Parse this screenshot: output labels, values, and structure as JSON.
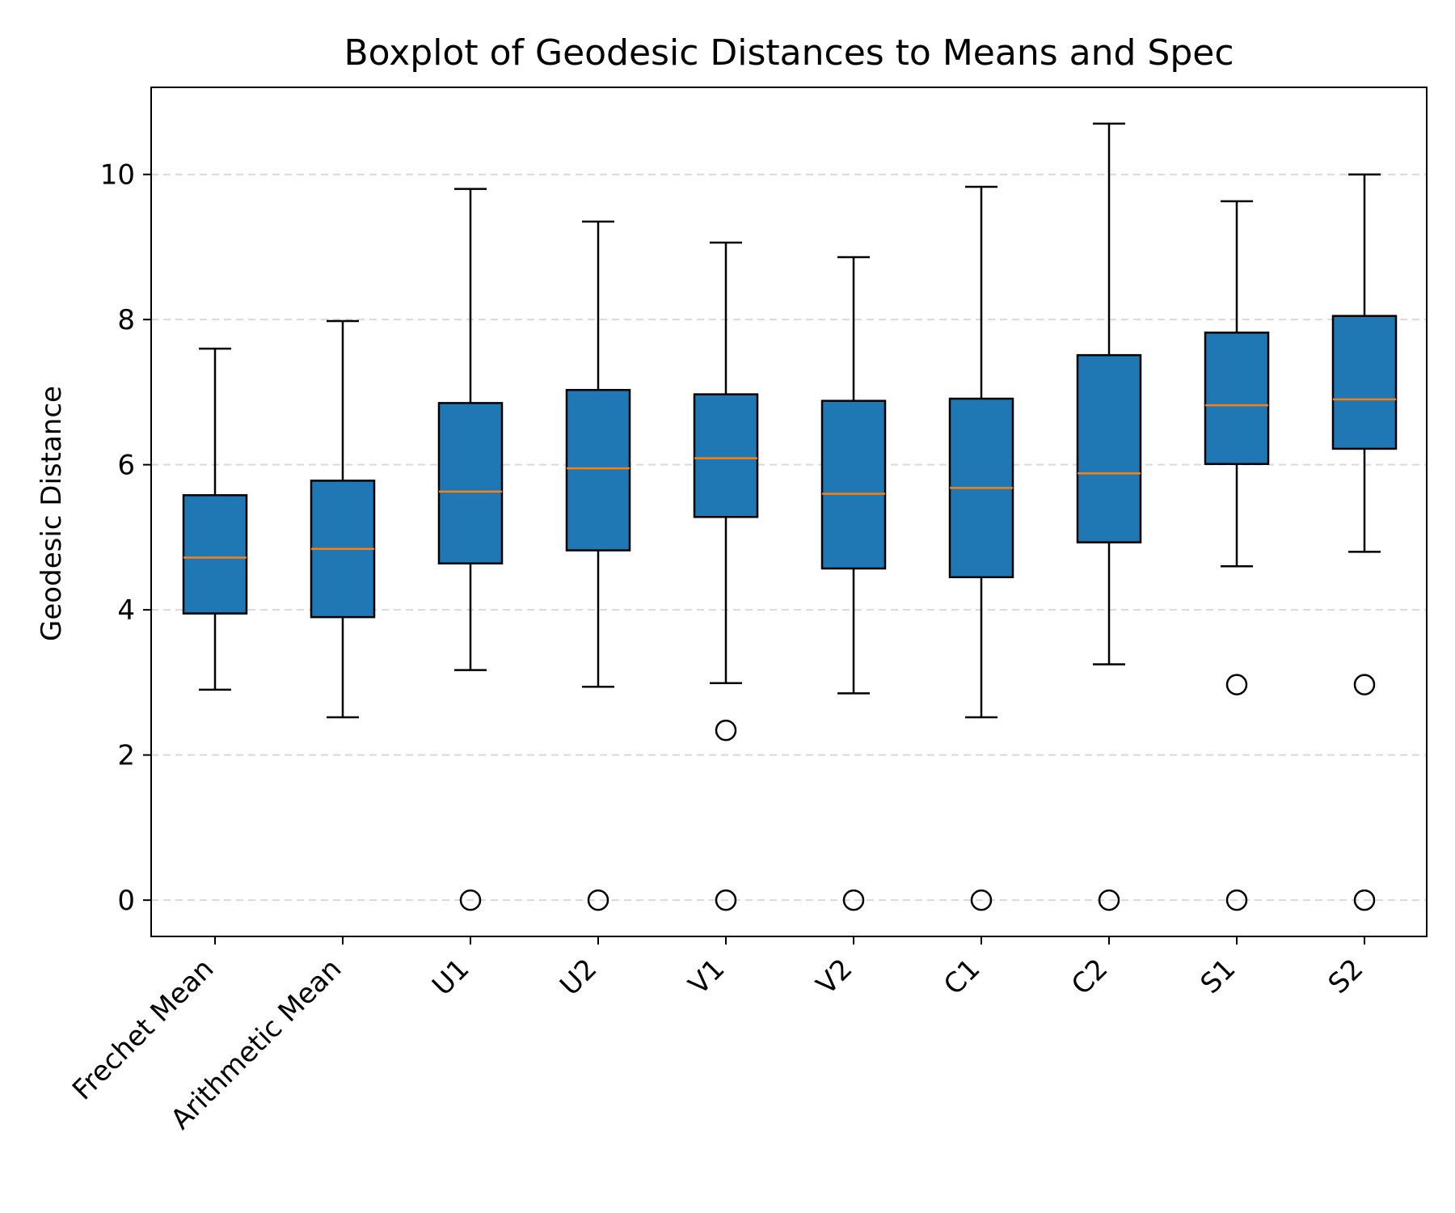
{
  "chart_data": {
    "type": "boxplot",
    "title": "Boxplot of Geodesic Distances to Means and Spec",
    "xlabel": "",
    "ylabel": "Geodesic Distance",
    "ylim": [
      -0.5,
      11.2
    ],
    "yticks": [
      0,
      2,
      4,
      6,
      8,
      10
    ],
    "grid": "y-dashed",
    "categories": [
      "Frechet Mean",
      "Arithmetic Mean",
      "U1",
      "U2",
      "V1",
      "V2",
      "C1",
      "C2",
      "S1",
      "S2"
    ],
    "boxes": [
      {
        "whislo": 2.9,
        "q1": 3.95,
        "med": 4.72,
        "q3": 5.58,
        "whishi": 7.6,
        "fliers": []
      },
      {
        "whislo": 2.52,
        "q1": 3.9,
        "med": 4.84,
        "q3": 5.78,
        "whishi": 7.98,
        "fliers": []
      },
      {
        "whislo": 3.17,
        "q1": 4.64,
        "med": 5.63,
        "q3": 6.85,
        "whishi": 9.8,
        "fliers": [
          0
        ]
      },
      {
        "whislo": 2.94,
        "q1": 4.82,
        "med": 5.95,
        "q3": 7.03,
        "whishi": 9.35,
        "fliers": [
          0
        ]
      },
      {
        "whislo": 2.99,
        "q1": 5.28,
        "med": 6.09,
        "q3": 6.97,
        "whishi": 9.06,
        "fliers": [
          2.34,
          0
        ]
      },
      {
        "whislo": 2.85,
        "q1": 4.57,
        "med": 5.6,
        "q3": 6.88,
        "whishi": 8.86,
        "fliers": [
          0
        ]
      },
      {
        "whislo": 2.52,
        "q1": 4.45,
        "med": 5.68,
        "q3": 6.91,
        "whishi": 9.83,
        "fliers": [
          0
        ]
      },
      {
        "whislo": 3.25,
        "q1": 4.93,
        "med": 5.88,
        "q3": 7.51,
        "whishi": 10.7,
        "fliers": [
          0
        ]
      },
      {
        "whislo": 4.6,
        "q1": 6.01,
        "med": 6.82,
        "q3": 7.82,
        "whishi": 9.63,
        "fliers": [
          2.97,
          0
        ]
      },
      {
        "whislo": 4.8,
        "q1": 6.22,
        "med": 6.9,
        "q3": 8.05,
        "whishi": 10.0,
        "fliers": [
          2.97,
          0
        ]
      }
    ],
    "colors": {
      "box_fill": "#1f77b4",
      "median": "#ff7f0e",
      "edge": "#000000",
      "grid": "#d9d9d9"
    }
  }
}
